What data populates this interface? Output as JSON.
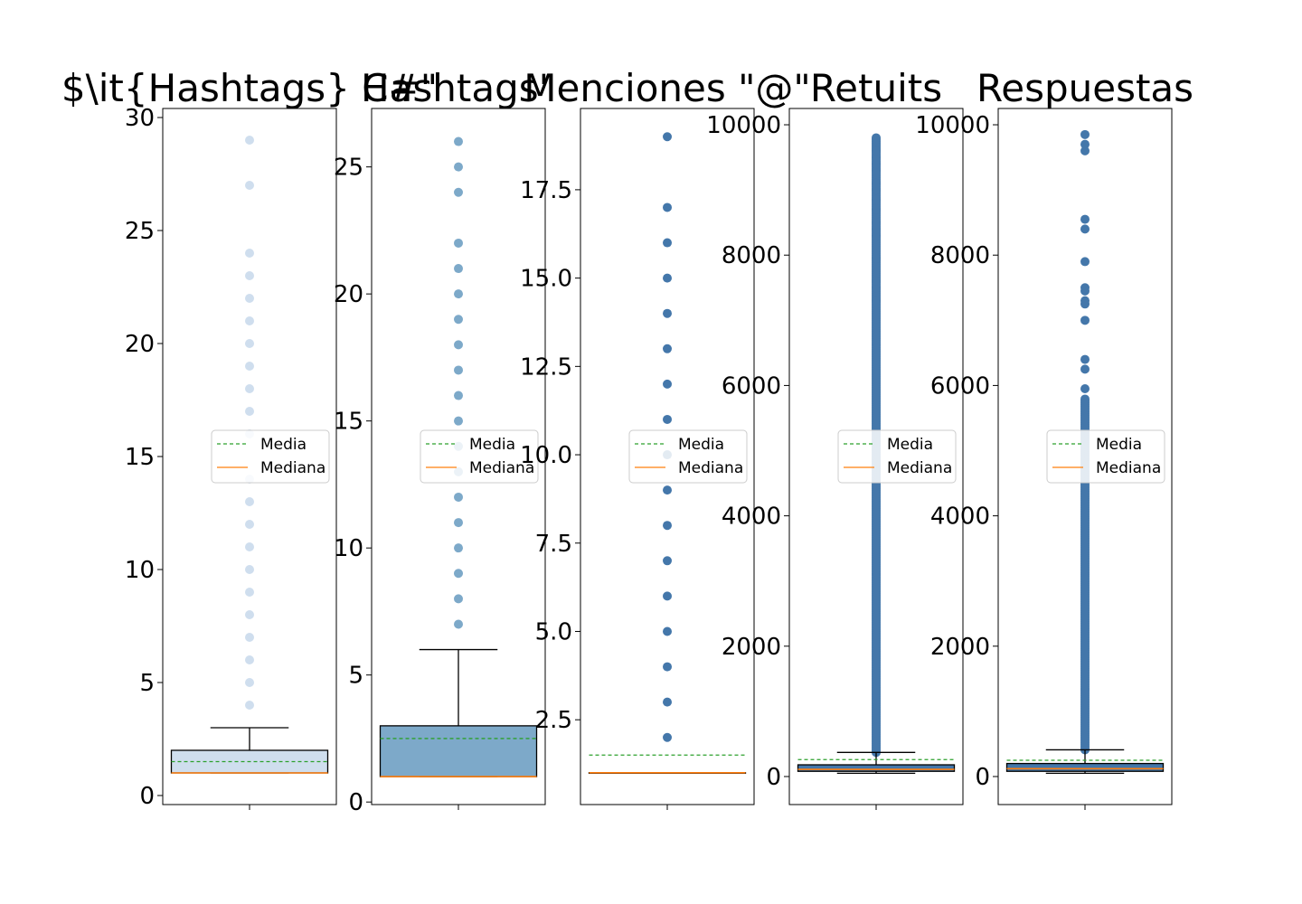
{
  "chart_data": [
    {
      "type": "box",
      "title": "$\\it{Hashtags} C#\"",
      "ylim": [
        -0.4,
        30.4
      ],
      "yticks": [
        0,
        5,
        10,
        15,
        20,
        25,
        30
      ],
      "ytick_labels": [
        "0",
        "5",
        "10",
        "15",
        "20",
        "25",
        "30"
      ],
      "box": {
        "whisker_low": 1,
        "q1": 1,
        "median": 1,
        "q3": 2,
        "whisker_high": 3,
        "mean": 1.5
      },
      "outliers": [
        4,
        5,
        6,
        7,
        8,
        9,
        10,
        11,
        12,
        13,
        14,
        16,
        17,
        18,
        19,
        20,
        21,
        22,
        23,
        24,
        27,
        29
      ],
      "box_color": "#cfdeee",
      "legend": [
        "Media",
        "Mediana"
      ]
    },
    {
      "type": "box",
      "title": "Hashtags\"",
      "ylim": [
        -0.1,
        27.3
      ],
      "yticks": [
        0,
        5,
        10,
        15,
        20,
        25
      ],
      "ytick_labels": [
        "0",
        "5",
        "10",
        "15",
        "20",
        "25"
      ],
      "box": {
        "whisker_low": 1,
        "q1": 1,
        "median": 1,
        "q3": 3,
        "whisker_high": 6,
        "mean": 2.5
      },
      "outliers": [
        7,
        8,
        9,
        10,
        11,
        12,
        13,
        14,
        15,
        16,
        17,
        18,
        19,
        20,
        21,
        22,
        24,
        25,
        26
      ],
      "box_color": "#7da9c9",
      "legend": [
        "Media",
        "Mediana"
      ]
    },
    {
      "type": "box",
      "title": "Menciones \"@\"",
      "ylim": [
        0.1,
        19.8
      ],
      "yticks": [
        2.5,
        5.0,
        7.5,
        10.0,
        12.5,
        15.0,
        17.5
      ],
      "ytick_labels": [
        "2.5",
        "5.0",
        "7.5",
        "10.0",
        "12.5",
        "15.0",
        "17.5"
      ],
      "box": {
        "whisker_low": 1,
        "q1": 1,
        "median": 1,
        "q3": 1,
        "whisker_high": 1,
        "mean": 1.5
      },
      "outliers": [
        2,
        3,
        4,
        5,
        6,
        7,
        8,
        9,
        10,
        11,
        12,
        13,
        14,
        15,
        16,
        17,
        19
      ],
      "box_color": "#4477aa",
      "legend": [
        "Media",
        "Mediana"
      ]
    },
    {
      "type": "box",
      "title": "Retuits",
      "ylim": [
        -430,
        10250
      ],
      "yticks": [
        0,
        2000,
        4000,
        6000,
        8000,
        10000
      ],
      "ytick_labels": [
        "0",
        "2000",
        "4000",
        "6000",
        "8000",
        "10000"
      ],
      "box": {
        "whisker_low": 50,
        "q1": 80,
        "median": 110,
        "q3": 180,
        "whisker_high": 370,
        "mean": 260
      },
      "outliers_range": [
        370,
        9800
      ],
      "outliers": [
        7300,
        7500,
        7600,
        7950,
        8300,
        8400,
        8500,
        8700,
        8850,
        9000,
        9100,
        9300,
        9400,
        9500,
        9600,
        9800
      ],
      "box_color": "#4477aa",
      "legend": [
        "Media",
        "Mediana"
      ]
    },
    {
      "type": "box",
      "title": "Respuestas",
      "ylim": [
        -430,
        10250
      ],
      "yticks": [
        0,
        2000,
        4000,
        6000,
        8000,
        10000
      ],
      "ytick_labels": [
        "0",
        "2000",
        "4000",
        "6000",
        "8000",
        "10000"
      ],
      "box": {
        "whisker_low": 50,
        "q1": 80,
        "median": 120,
        "q3": 200,
        "whisker_high": 410,
        "mean": 250
      },
      "outliers_range": [
        410,
        5800
      ],
      "outliers": [
        5950,
        6250,
        6400,
        7000,
        7250,
        7300,
        7450,
        7500,
        7900,
        8400,
        8550,
        9600,
        9700,
        9850
      ],
      "box_color": "#4477aa",
      "legend": [
        "Media",
        "Mediana"
      ]
    }
  ],
  "colors": {
    "mean": "#2ca02c",
    "median": "#ff7f0e",
    "axis": "#000000"
  }
}
